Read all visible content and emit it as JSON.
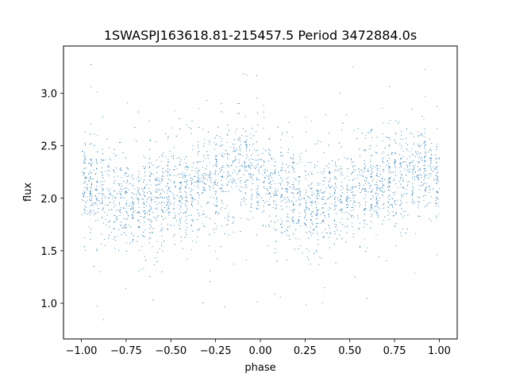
{
  "chart_data": {
    "type": "scatter",
    "title": "1SWASPJ163618.81-215457.5 Period 3472884.0s",
    "xlabel": "phase",
    "ylabel": "flux",
    "xlim": [
      -1.1,
      1.1
    ],
    "ylim": [
      0.66,
      3.45
    ],
    "xticks": [
      -1.0,
      -0.75,
      -0.5,
      -0.25,
      0.0,
      0.25,
      0.5,
      0.75,
      1.0
    ],
    "xtick_labels": [
      "−1.00",
      "−0.75",
      "−0.50",
      "−0.25",
      "0.00",
      "0.25",
      "0.50",
      "0.75",
      "1.00"
    ],
    "yticks": [
      1.0,
      1.5,
      2.0,
      2.5,
      3.0
    ],
    "ytick_labels": [
      "1.0",
      "1.5",
      "2.0",
      "2.5",
      "3.0"
    ],
    "grid": false,
    "point_color": "#1f77b4",
    "phase_range": [
      -1.0,
      1.0
    ],
    "trend": {
      "phase": [
        -1.0,
        -0.9,
        -0.8,
        -0.7,
        -0.6,
        -0.5,
        -0.4,
        -0.3,
        -0.2,
        -0.1,
        0.0,
        0.1,
        0.2,
        0.3,
        0.4,
        0.5,
        0.6,
        0.7,
        0.8,
        0.9,
        1.0
      ],
      "flux": [
        2.18,
        2.08,
        1.98,
        1.95,
        2.02,
        2.05,
        2.08,
        2.12,
        2.22,
        2.3,
        2.2,
        2.08,
        1.98,
        1.95,
        2.02,
        2.05,
        2.08,
        2.12,
        2.22,
        2.3,
        2.2
      ]
    },
    "scatter_spread": 0.22,
    "flux_range": [
      0.78,
      3.33
    ]
  }
}
